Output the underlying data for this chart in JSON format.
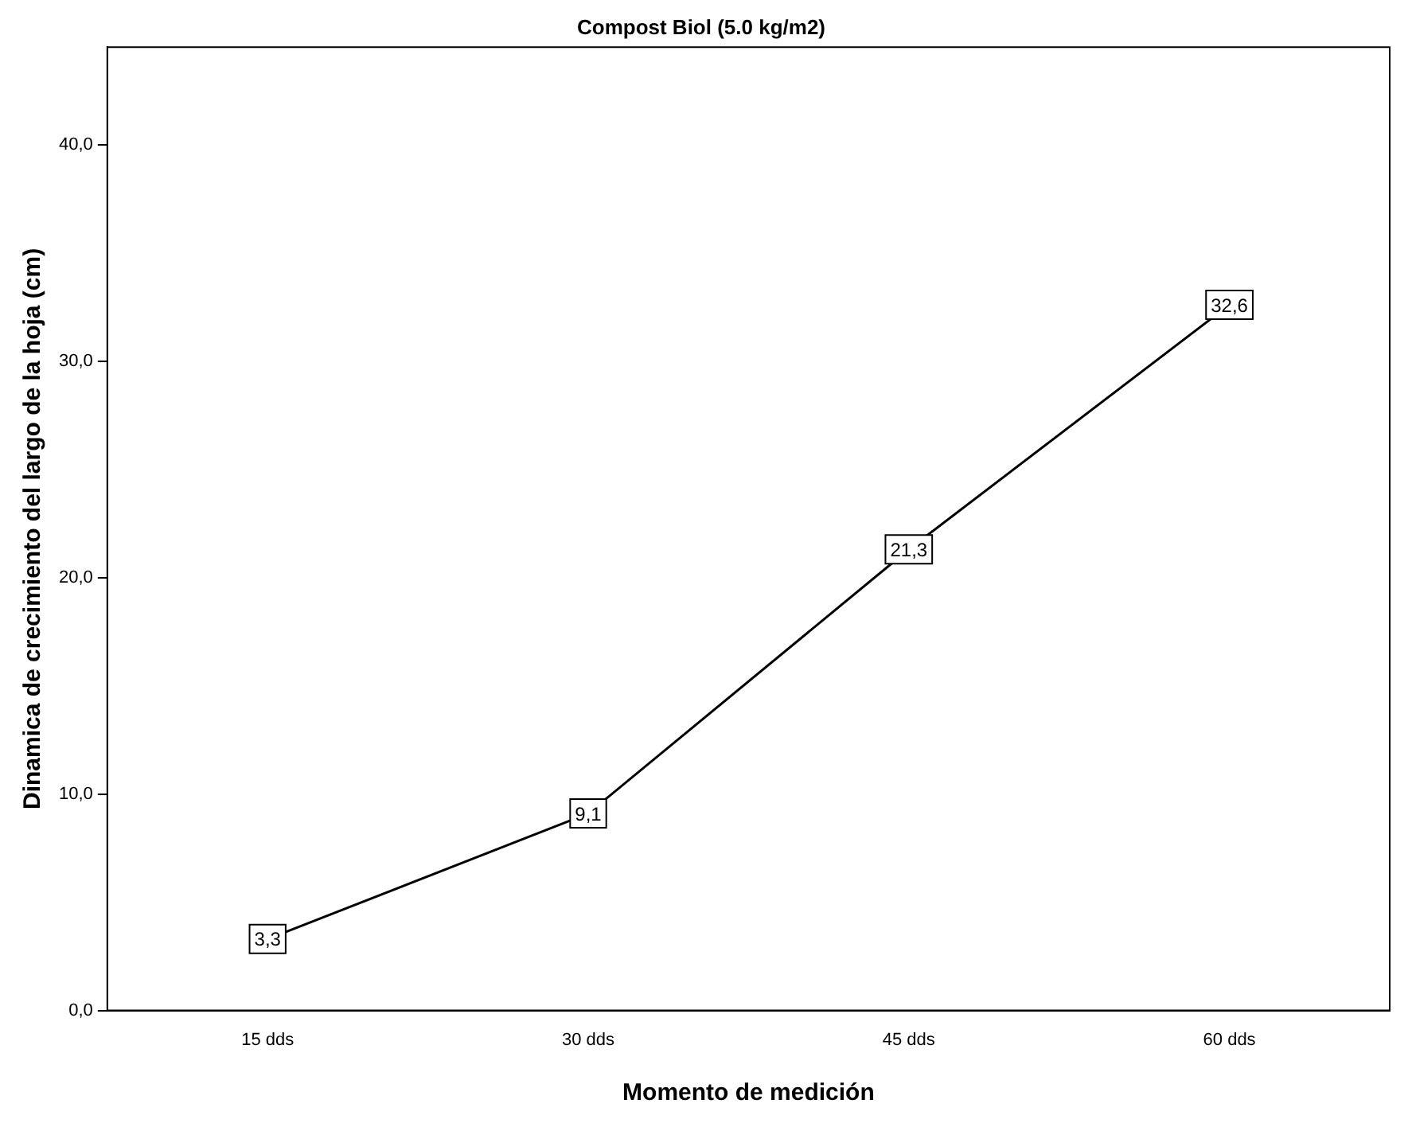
{
  "chart_data": {
    "type": "line",
    "title": "Compost Biol (5.0 kg/m2)",
    "xlabel": "Momento de medición",
    "ylabel": "Dinamica de crecimiento del largo de la hoja (cm)",
    "categories": [
      "15 dds",
      "30 dds",
      "45 dds",
      "60 dds"
    ],
    "series": [
      {
        "color": "#000000",
        "values": [
          3.3,
          9.1,
          21.3,
          32.6
        ],
        "value_labels": [
          "3,3",
          "9,1",
          "21,3",
          "32,6"
        ]
      }
    ],
    "ylim": [
      0,
      44.5
    ],
    "yticks": [
      {
        "value": 0,
        "label": "0,0"
      },
      {
        "value": 10,
        "label": "10,0"
      },
      {
        "value": 20,
        "label": "20,0"
      },
      {
        "value": 30,
        "label": "30,0"
      },
      {
        "value": 40,
        "label": "40,0"
      }
    ],
    "grid": false,
    "legend": false,
    "marker": "square",
    "line_style": "solid"
  }
}
